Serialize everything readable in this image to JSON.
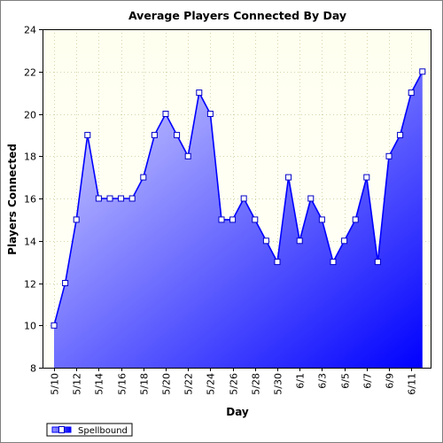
{
  "chart_data": {
    "type": "area",
    "title": "Average Players Connected By Day",
    "xlabel": "Day",
    "ylabel": "Players Connected",
    "ylim": [
      8,
      24
    ],
    "yticks": [
      8,
      10,
      12,
      14,
      16,
      18,
      20,
      22,
      24
    ],
    "x_tick_labels": [
      "5/10",
      "5/12",
      "5/14",
      "5/16",
      "5/18",
      "5/20",
      "5/22",
      "5/24",
      "5/26",
      "5/28",
      "5/30",
      "6/1",
      "6/3",
      "6/5",
      "6/7",
      "6/9",
      "6/11"
    ],
    "grid": true,
    "legend_position": "bottom-left",
    "colors": {
      "plot_bg_top": "#fffff0",
      "plot_bg_bottom": "#fffff8",
      "grid": "#d4d4aa",
      "series_line": "#0000ff",
      "fill_light": "#dadaff",
      "fill_dark": "#0000ff",
      "marker_fill": "#ffffff",
      "marker_stroke": "#0000c8"
    },
    "series": [
      {
        "name": "Spellbound",
        "x": [
          "5/10",
          "5/11",
          "5/12",
          "5/13",
          "5/14",
          "5/15",
          "5/16",
          "5/17",
          "5/18",
          "5/19",
          "5/20",
          "5/21",
          "5/22",
          "5/23",
          "5/24",
          "5/25",
          "5/26",
          "5/27",
          "5/28",
          "5/29",
          "5/30",
          "5/31",
          "6/1",
          "6/2",
          "6/3",
          "6/4",
          "6/5",
          "6/6",
          "6/7",
          "6/8",
          "6/9",
          "6/10",
          "6/11",
          "6/12"
        ],
        "values": [
          10,
          12,
          15,
          19,
          16,
          16,
          16,
          16,
          17,
          19,
          20,
          19,
          18,
          21,
          20,
          15,
          15,
          16,
          15,
          14,
          13,
          17,
          14,
          16,
          15,
          13,
          14,
          15,
          17,
          13,
          18,
          19,
          21,
          22
        ]
      }
    ]
  }
}
